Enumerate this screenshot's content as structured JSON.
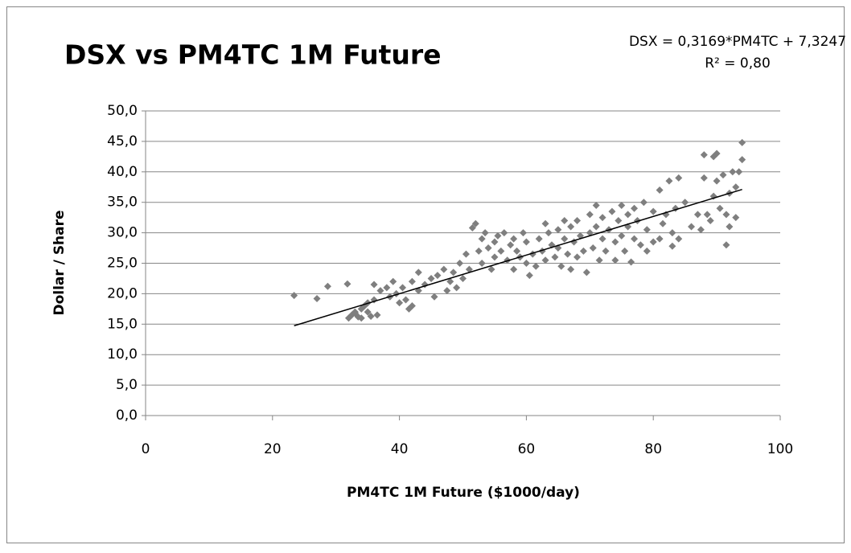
{
  "chart_data": {
    "type": "scatter",
    "title": "DSX vs PM4TC 1M Future",
    "annotations": [
      "DSX = 0,3169*PM4TC + 7,3247",
      "R² = 0,80"
    ],
    "x_label": "PM4TC 1M Future ($1000/day)",
    "y_label": "Dollar / Share",
    "xlim": [
      0,
      100
    ],
    "xticks": [
      0,
      20,
      40,
      60,
      80,
      100
    ],
    "ylim": [
      0,
      50
    ],
    "yticks": [
      {
        "value": 0,
        "label": "0,0"
      },
      {
        "value": 5,
        "label": "5,0"
      },
      {
        "value": 10,
        "label": "10,0"
      },
      {
        "value": 15,
        "label": "15,0"
      },
      {
        "value": 20,
        "label": "20,0"
      },
      {
        "value": 25,
        "label": "25,0"
      },
      {
        "value": 30,
        "label": "30,0"
      },
      {
        "value": 35,
        "label": "35,0"
      },
      {
        "value": 40,
        "label": "40,0"
      },
      {
        "value": 45,
        "label": "45,0"
      },
      {
        "value": 50,
        "label": "50,0"
      }
    ],
    "grid": true,
    "color": "#7f7f7f",
    "trendline": {
      "slope": 0.3169,
      "intercept": 7.3247,
      "x": [
        23.4,
        94
      ],
      "color": "#000000"
    },
    "x": [
      23.4,
      27,
      28.7,
      31.8,
      32,
      32.5,
      33,
      33.5,
      34,
      34.5,
      35,
      35.5,
      36,
      36,
      33,
      34,
      35,
      36.5,
      37,
      38,
      38.5,
      39,
      39.5,
      40,
      40.5,
      41,
      41.5,
      42,
      42,
      43,
      43,
      44,
      45,
      45.5,
      46,
      47,
      47.5,
      48,
      48.5,
      49,
      49.5,
      50,
      50.5,
      51,
      51.5,
      52,
      52.5,
      53,
      53,
      53.5,
      54,
      54.5,
      55,
      55,
      55.5,
      56,
      56.5,
      57,
      57.5,
      58,
      58,
      58.5,
      59,
      59.5,
      60,
      60,
      60.5,
      61,
      61.5,
      62,
      62.5,
      63,
      63,
      63.5,
      64,
      64.5,
      65,
      65,
      65.5,
      66,
      66,
      66.5,
      67,
      67,
      67.5,
      68,
      68,
      68.5,
      69,
      69.5,
      70,
      70,
      70.5,
      71,
      71,
      71.5,
      72,
      72,
      72.5,
      73,
      73.5,
      74,
      74,
      74.5,
      75,
      75,
      75.5,
      76,
      76,
      76.5,
      77,
      77,
      77.5,
      78,
      78.5,
      79,
      79,
      80,
      80,
      81,
      81,
      81.5,
      82,
      82.5,
      83,
      83,
      83.5,
      84,
      84,
      86,
      87,
      87.5,
      88,
      88,
      88.5,
      89,
      89.5,
      89.5,
      90,
      90,
      90.5,
      91,
      91.5,
      91.5,
      92,
      92,
      92.5,
      93,
      93.5,
      94,
      94,
      93,
      85
    ],
    "values": [
      19.7,
      19.2,
      21.2,
      21.6,
      16,
      16.5,
      17,
      16.2,
      17.5,
      18,
      18.5,
      16.3,
      21.5,
      19,
      16.8,
      16,
      17,
      16.5,
      20.5,
      21,
      19.5,
      22,
      20,
      18.5,
      21,
      19,
      17.5,
      18,
      22,
      23.5,
      20.5,
      21.5,
      22.5,
      19.5,
      23,
      24,
      20.5,
      22,
      23.5,
      21,
      25,
      22.5,
      26.5,
      24,
      30.8,
      31.5,
      27,
      29,
      25,
      30,
      27.5,
      24,
      28.5,
      26,
      29.5,
      27,
      30,
      25.5,
      28,
      24,
      29,
      27,
      26,
      30,
      25,
      28.5,
      23,
      26.5,
      24.5,
      29,
      27,
      31.5,
      25.5,
      30,
      28,
      26,
      30.5,
      27.5,
      24.5,
      32,
      29,
      26.5,
      31,
      24,
      28.5,
      32,
      26,
      29.5,
      27,
      23.5,
      33,
      30,
      27.5,
      34.5,
      31,
      25.5,
      32.5,
      29,
      27,
      30.5,
      33.5,
      28.5,
      25.5,
      32,
      34.5,
      29.5,
      27,
      33,
      31,
      25.2,
      29,
      34,
      32,
      28,
      35,
      30.5,
      27,
      33.5,
      28.5,
      37,
      29,
      31.5,
      33,
      38.5,
      30,
      27.8,
      34,
      39,
      29,
      31,
      33,
      30.5,
      39,
      42.8,
      33,
      32,
      42.5,
      36,
      43,
      38.5,
      34,
      39.5,
      33,
      28,
      36.5,
      31,
      40,
      37.5,
      40,
      42,
      44.8,
      32.5,
      35
    ]
  }
}
